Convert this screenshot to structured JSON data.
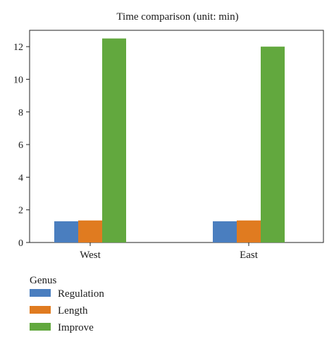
{
  "chart_data": {
    "type": "bar",
    "title": "Time comparison (unit: min)",
    "xlabel": "",
    "ylabel": "",
    "categories": [
      "West",
      "East"
    ],
    "ylim": [
      0,
      13
    ],
    "yticks": [
      0,
      2,
      4,
      6,
      8,
      10,
      12
    ],
    "grid": false,
    "legend": {
      "title": "Genus",
      "placement": "bottom-left"
    },
    "series": [
      {
        "name": "Regulation",
        "color": "#4a7ebf",
        "values": [
          1.3,
          1.3
        ]
      },
      {
        "name": "Length",
        "color": "#e07b20",
        "values": [
          1.35,
          1.35
        ]
      },
      {
        "name": "Improve",
        "color": "#62a83e",
        "values": [
          12.5,
          12.0
        ]
      }
    ]
  }
}
